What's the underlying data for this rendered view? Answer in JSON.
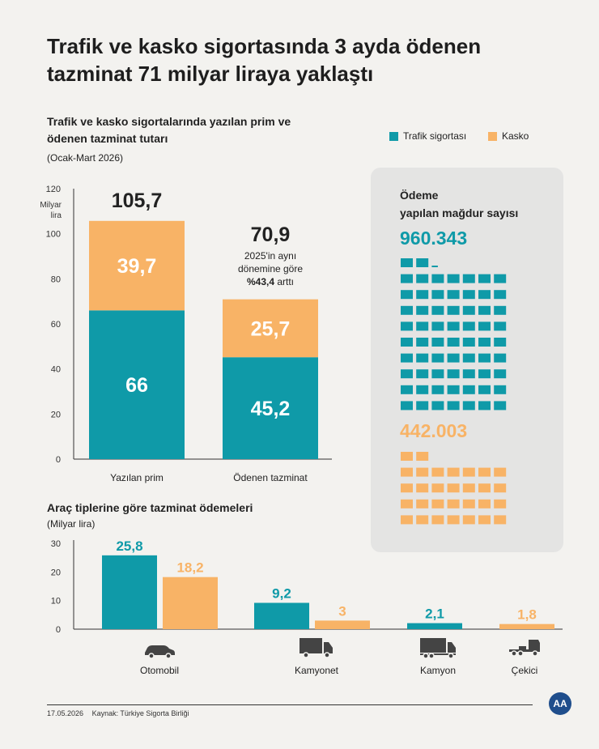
{
  "title": "Trafik ve kasko sigortasında 3 ayda ödenen tazminat 71 milyar liraya yaklaştı",
  "colors": {
    "traffic": "#0f9aa8",
    "kasko": "#f8b366",
    "panel": "#e4e4e3",
    "axis": "#333333"
  },
  "legend": {
    "traffic_label": "Trafik sigortası",
    "kasko_label": "Kasko"
  },
  "chart_data": [
    {
      "type": "bar",
      "stacked": true,
      "title": "Trafik ve kasko sigortalarında yazılan prim ve ödenen tazminat tutarı",
      "subtitle": "(Ocak-Mart 2026)",
      "ylabel": "Milyar lira",
      "ylim": [
        0,
        120
      ],
      "yticks": [
        0,
        20,
        40,
        60,
        80,
        100,
        120
      ],
      "categories": [
        "Yazılan prim",
        "Ödenen tazminat"
      ],
      "series": [
        {
          "name": "Trafik sigortası",
          "values": [
            66,
            45.2
          ],
          "labels": [
            "66",
            "45,2"
          ]
        },
        {
          "name": "Kasko",
          "values": [
            39.7,
            25.7
          ],
          "labels": [
            "39,7",
            "25,7"
          ]
        }
      ],
      "totals": [
        "105,7",
        "70,9"
      ],
      "annotation": {
        "line1": "2025'in aynı",
        "line2": "dönemine göre",
        "line3_bold": "%43,4",
        "line3_rest": " arttı"
      }
    },
    {
      "type": "bar",
      "title": "Araç tiplerine göre tazminat ödemeleri",
      "subtitle": "(Milyar lira)",
      "ylim": [
        0,
        30
      ],
      "yticks": [
        0,
        10,
        20,
        30
      ],
      "categories": [
        "Otomobil",
        "Kamyonet",
        "Kamyon",
        "Çekici"
      ],
      "category_icons": [
        "car-icon",
        "van-icon",
        "truck-icon",
        "tow-truck-icon"
      ],
      "series": [
        {
          "name": "Trafik sigortası",
          "values": [
            25.8,
            9.2,
            2.1,
            null
          ],
          "labels": [
            "25,8",
            "9,2",
            "2,1",
            ""
          ]
        },
        {
          "name": "Kasko",
          "values": [
            18.2,
            3,
            null,
            1.8
          ],
          "labels": [
            "18,2",
            "3",
            "",
            "1,8"
          ]
        }
      ]
    }
  ],
  "victims": {
    "title_line1": "Ödeme",
    "title_line2": "yapılan mağdur sayısı",
    "traffic_count": "960.343",
    "kasko_count": "442.003",
    "traffic_units": 65.5,
    "kasko_units": 30
  },
  "footer": {
    "date": "17.05.2026",
    "source": "Kaynak: Türkiye Sigorta Birliği",
    "logo": "AA"
  }
}
